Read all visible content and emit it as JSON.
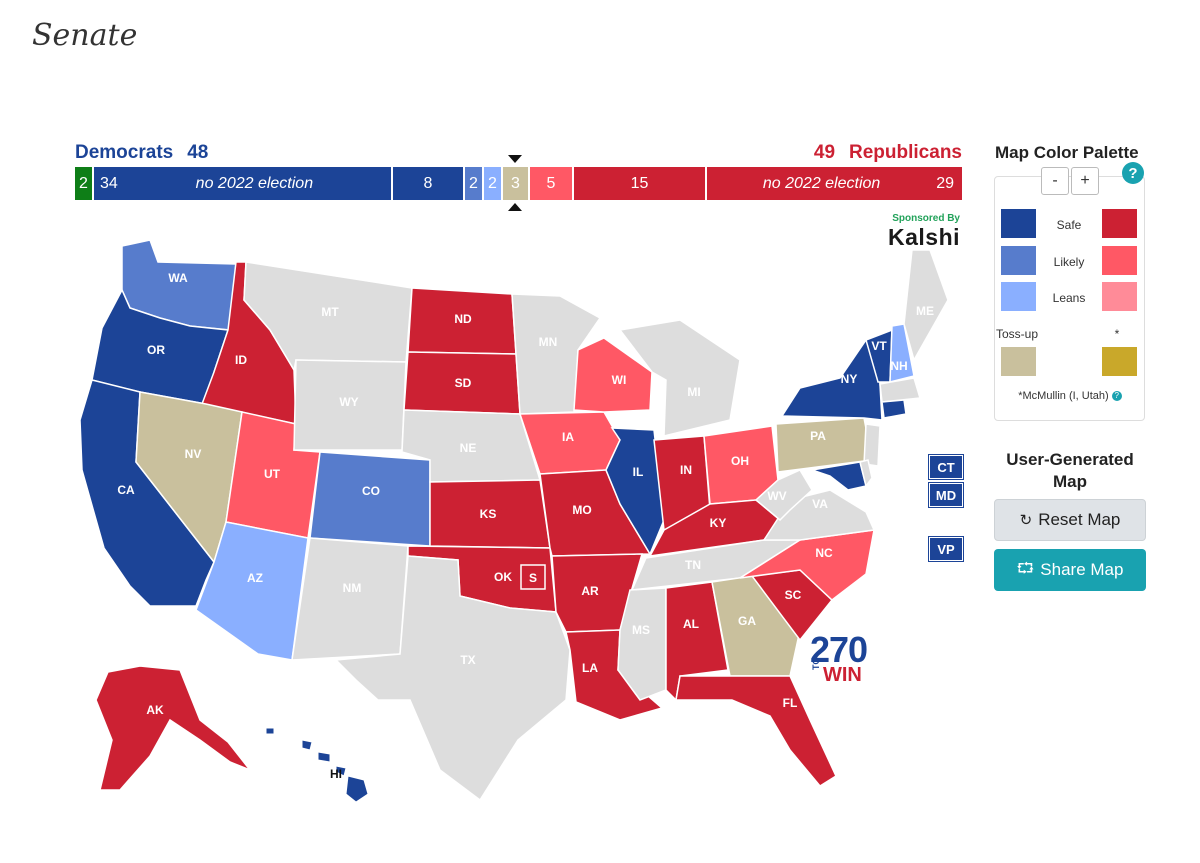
{
  "page": {
    "title": "Senate"
  },
  "header": {
    "dem_label": "Democrats",
    "dem_total": "48",
    "rep_label": "Republicans",
    "rep_total": "49"
  },
  "seat_bar": {
    "segments": [
      {
        "name": "independent",
        "value": "2",
        "color": "#0e7e17"
      },
      {
        "name": "dem-no-election",
        "value": "34",
        "note": "no 2022 election",
        "color": "#1c4497"
      },
      {
        "name": "dem-safe",
        "value": "8",
        "color": "#1c4497"
      },
      {
        "name": "dem-likely",
        "value": "2",
        "color": "#577ccc"
      },
      {
        "name": "dem-leans",
        "value": "2",
        "color": "#8aafff"
      },
      {
        "name": "toss-up",
        "value": "3",
        "color": "#c9c09d"
      },
      {
        "name": "rep-likely",
        "value": "5",
        "color": "#ff5865"
      },
      {
        "name": "rep-safe",
        "value": "15",
        "color": "#cc2133"
      },
      {
        "name": "rep-no-election",
        "value": "29",
        "note": "no 2022 election",
        "color": "#cc2133"
      }
    ]
  },
  "sponsor": {
    "label": "Sponsored By",
    "brand": "Kalshi"
  },
  "map": {
    "colors": {
      "safe_d": "#1c4497",
      "likely_d": "#577ccc",
      "leans_d": "#8aafff",
      "tossup": "#c9c09d",
      "likely_r": "#ff5865",
      "safe_r": "#cc2133",
      "none": "#dddddd"
    },
    "states": {
      "WA": "WA",
      "OR": "OR",
      "CA": "CA",
      "ID": "ID",
      "NV": "NV",
      "MT": "MT",
      "WY": "WY",
      "UT": "UT",
      "AZ": "AZ",
      "CO": "CO",
      "NM": "NM",
      "ND": "ND",
      "SD": "SD",
      "NE": "NE",
      "KS": "KS",
      "OK": "OK",
      "TX": "TX",
      "MN": "MN",
      "IA": "IA",
      "MO": "MO",
      "AR": "AR",
      "LA": "LA",
      "WI": "WI",
      "IL": "IL",
      "MI": "MI",
      "IN": "IN",
      "OH": "OH",
      "KY": "KY",
      "TN": "TN",
      "MS": "MS",
      "AL": "AL",
      "GA": "GA",
      "FL": "FL",
      "SC": "SC",
      "NC": "NC",
      "VA": "VA",
      "WV": "WV",
      "PA": "PA",
      "NY": "NY",
      "VT": "VT",
      "NH": "NH",
      "ME": "ME",
      "AK": "AK",
      "HI": "HI",
      "S": "S"
    },
    "side_buttons": {
      "ct": "CT",
      "md": "MD",
      "vp": "VP"
    },
    "logo": {
      "number": "270",
      "to": "TO",
      "win": "WIN"
    }
  },
  "palette": {
    "title": "Map Color Palette",
    "help": "?",
    "zoom_out": "-",
    "zoom_in": "+",
    "rows": [
      "Safe",
      "Likely",
      "Leans"
    ],
    "tossup_label": "Toss-up",
    "star": "*",
    "colors": {
      "safe_d": "#1c4497",
      "safe_r": "#cc2133",
      "likely_d": "#577ccc",
      "likely_r": "#ff5865",
      "leans_d": "#8aafff",
      "leans_r": "#ff8b98",
      "tossup": "#c9c09d",
      "mcmullin": "#c9a82a"
    },
    "note": "*McMullin (I, Utah)"
  },
  "ugm": {
    "title": "User-Generated Map",
    "reset": "Reset Map",
    "share": "Share Map"
  }
}
